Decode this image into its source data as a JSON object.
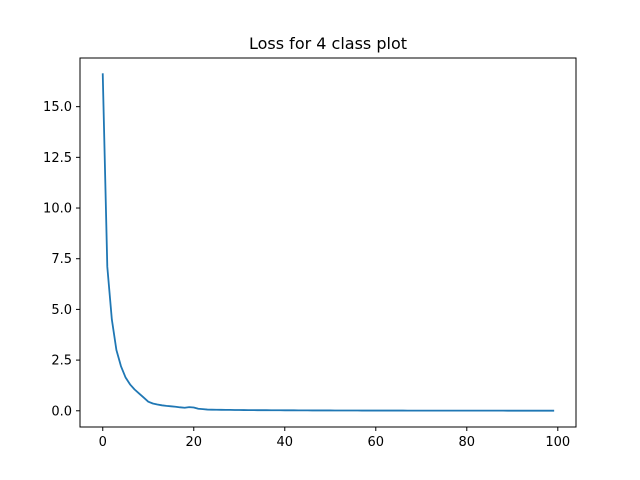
{
  "chart_data": {
    "type": "line",
    "title": "Loss for 4 class plot",
    "xlabel": "",
    "ylabel": "",
    "xlim": [
      -5,
      104
    ],
    "ylim": [
      -0.8,
      17.4
    ],
    "xticks": [
      0,
      20,
      40,
      60,
      80,
      100
    ],
    "xtick_labels": [
      "0",
      "20",
      "40",
      "60",
      "80",
      "100"
    ],
    "yticks": [
      0,
      2.5,
      5,
      7.5,
      10,
      12.5,
      15
    ],
    "ytick_labels": [
      "0.0",
      "2.5",
      "5.0",
      "7.5",
      "10.0",
      "12.5",
      "15.0"
    ],
    "grid": false,
    "series": [
      {
        "color": "#1f77b4",
        "x": [
          0,
          1,
          2,
          3,
          4,
          5,
          6,
          7,
          8,
          9,
          10,
          11,
          12,
          13,
          14,
          15,
          16,
          17,
          18,
          19,
          20,
          21,
          22,
          23,
          24,
          25,
          26,
          27,
          28,
          29,
          30,
          31,
          32,
          33,
          34,
          35,
          36,
          37,
          38,
          39,
          40,
          41,
          42,
          43,
          44,
          45,
          46,
          47,
          48,
          49,
          50,
          51,
          52,
          53,
          54,
          55,
          56,
          57,
          58,
          59,
          60,
          61,
          62,
          63,
          64,
          65,
          66,
          67,
          68,
          69,
          70,
          71,
          72,
          73,
          74,
          75,
          76,
          77,
          78,
          79,
          80,
          81,
          82,
          83,
          84,
          85,
          86,
          87,
          88,
          89,
          90,
          91,
          92,
          93,
          94,
          95,
          96,
          97,
          98,
          99
        ],
        "values": [
          16.6,
          7.1,
          4.5,
          3.0,
          2.2,
          1.65,
          1.3,
          1.05,
          0.85,
          0.65,
          0.45,
          0.36,
          0.31,
          0.27,
          0.24,
          0.22,
          0.2,
          0.17,
          0.15,
          0.18,
          0.16,
          0.1,
          0.08,
          0.06,
          0.055,
          0.05,
          0.048,
          0.045,
          0.043,
          0.04,
          0.038,
          0.036,
          0.034,
          0.032,
          0.03,
          0.029,
          0.028,
          0.027,
          0.026,
          0.025,
          0.024,
          0.023,
          0.022,
          0.021,
          0.02,
          0.019,
          0.018,
          0.018,
          0.017,
          0.016,
          0.016,
          0.015,
          0.015,
          0.014,
          0.014,
          0.013,
          0.013,
          0.012,
          0.012,
          0.012,
          0.011,
          0.011,
          0.011,
          0.01,
          0.01,
          0.01,
          0.01,
          0.009,
          0.009,
          0.009,
          0.009,
          0.008,
          0.008,
          0.008,
          0.008,
          0.008,
          0.007,
          0.007,
          0.007,
          0.007,
          0.007,
          0.007,
          0.006,
          0.006,
          0.006,
          0.006,
          0.006,
          0.006,
          0.006,
          0.005,
          0.005,
          0.005,
          0.005,
          0.005,
          0.005,
          0.005,
          0.005,
          0.005,
          0.004,
          0.004
        ]
      }
    ]
  }
}
